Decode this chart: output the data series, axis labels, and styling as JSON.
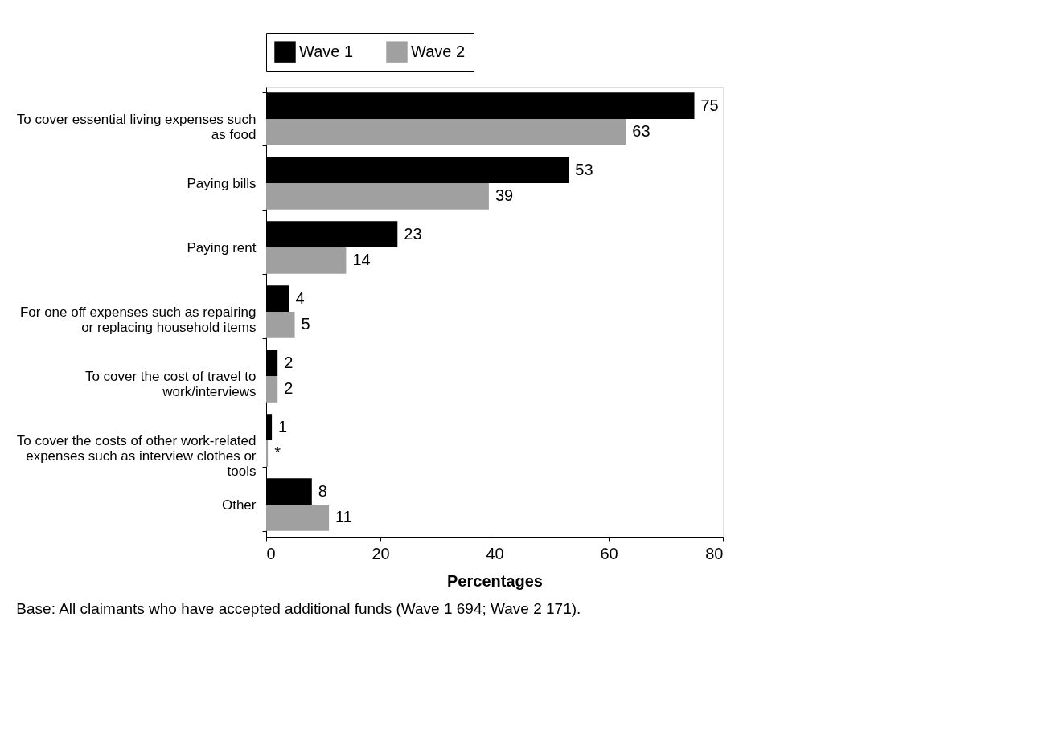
{
  "chart_data": {
    "type": "bar",
    "orientation": "horizontal",
    "categories": [
      "To cover essential living expenses such as food",
      "Paying bills",
      "Paying rent",
      "For one off expenses such as repairing or replacing household items",
      "To cover the cost of travel to work/interviews",
      "To cover the costs of other work-related expenses such as interview clothes or tools",
      "Other"
    ],
    "series": [
      {
        "name": "Wave 1",
        "color": "#000000",
        "values": [
          75,
          53,
          23,
          4,
          2,
          1,
          8
        ],
        "value_labels": [
          "75",
          "53",
          "23",
          "4",
          "2",
          "1",
          "8"
        ]
      },
      {
        "name": "Wave 2",
        "color": "#a0a0a0",
        "values": [
          63,
          39,
          14,
          5,
          2,
          0.3,
          11
        ],
        "value_labels": [
          "63",
          "39",
          "14",
          "5",
          "2",
          "*",
          "11"
        ]
      }
    ],
    "xlim": [
      0,
      80
    ],
    "xticks": [
      0,
      20,
      40,
      60,
      80
    ],
    "xlabel": "Percentages",
    "legend": "top",
    "grid": false,
    "annotations": [
      "Base: All claimants who have accepted additional funds (Wave 1 694; Wave 2 171)."
    ]
  }
}
